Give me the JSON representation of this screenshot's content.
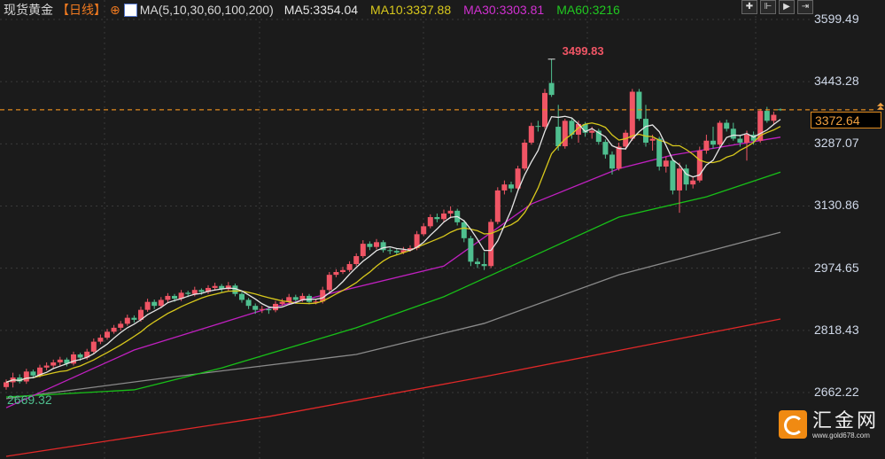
{
  "header": {
    "symbol": "现货黄金",
    "period": "【日线】",
    "ma_title": "MA(5,10,30,60,100,200)",
    "ma5": "MA5:3354.04",
    "ma10": "MA10:3337.88",
    "ma30": "MA30:3303.81",
    "ma60": "MA60:3216"
  },
  "toolbar": {
    "icons": [
      "crosshair-icon",
      "zoom-icon",
      "play-icon",
      "goto-end-icon"
    ]
  },
  "colors": {
    "up": "#f05565",
    "down": "#4fbf8f",
    "ma5": "#e6e6e6",
    "ma10": "#d8c81c",
    "ma30": "#c020c0",
    "ma60": "#18c018",
    "ma100": "#8a8a8a",
    "ma200": "#e02828",
    "last_price": "#f0a040"
  },
  "logo": {
    "name": "汇金网",
    "url": "www.gold678.com"
  },
  "chart_data": {
    "type": "candlestick",
    "ylim": [
      2495,
      3648
    ],
    "y_ticks": [
      "3599.49",
      "3443.28",
      "3287.07",
      "3130.86",
      "2974.65",
      "2818.43",
      "2662.22"
    ],
    "last_price": "3372.64",
    "high_label": "3499.83",
    "low_label": "2669.32",
    "grid": true,
    "ohlc": [
      [
        2676,
        2695,
        2669.32,
        2688
      ],
      [
        2688,
        2712,
        2675,
        2700
      ],
      [
        2700,
        2708,
        2685,
        2690
      ],
      [
        2690,
        2722,
        2684,
        2715
      ],
      [
        2715,
        2720,
        2698,
        2705
      ],
      [
        2705,
        2732,
        2700,
        2725
      ],
      [
        2725,
        2738,
        2718,
        2730
      ],
      [
        2730,
        2745,
        2724,
        2738
      ],
      [
        2738,
        2752,
        2730,
        2745
      ],
      [
        2745,
        2750,
        2728,
        2735
      ],
      [
        2735,
        2765,
        2730,
        2758
      ],
      [
        2758,
        2762,
        2742,
        2750
      ],
      [
        2750,
        2772,
        2745,
        2765
      ],
      [
        2765,
        2798,
        2760,
        2790
      ],
      [
        2790,
        2808,
        2784,
        2800
      ],
      [
        2800,
        2822,
        2795,
        2815
      ],
      [
        2815,
        2832,
        2810,
        2825
      ],
      [
        2825,
        2842,
        2818,
        2835
      ],
      [
        2835,
        2858,
        2830,
        2850
      ],
      [
        2850,
        2856,
        2838,
        2845
      ],
      [
        2845,
        2878,
        2840,
        2870
      ],
      [
        2870,
        2898,
        2865,
        2890
      ],
      [
        2890,
        2896,
        2872,
        2880
      ],
      [
        2880,
        2902,
        2874,
        2895
      ],
      [
        2895,
        2912,
        2888,
        2905
      ],
      [
        2905,
        2910,
        2890,
        2898
      ],
      [
        2898,
        2920,
        2892,
        2913
      ],
      [
        2913,
        2918,
        2902,
        2910
      ],
      [
        2910,
        2928,
        2904,
        2920
      ],
      [
        2920,
        2924,
        2908,
        2915
      ],
      [
        2915,
        2932,
        2910,
        2925
      ],
      [
        2925,
        2938,
        2918,
        2930
      ],
      [
        2930,
        2935,
        2915,
        2922
      ],
      [
        2922,
        2940,
        2916,
        2931
      ],
      [
        2931,
        2936,
        2904,
        2910
      ],
      [
        2910,
        2915,
        2888,
        2895
      ],
      [
        2895,
        2900,
        2872,
        2880
      ],
      [
        2880,
        2886,
        2860,
        2870
      ],
      [
        2870,
        2880,
        2862,
        2872
      ],
      [
        2872,
        2878,
        2860,
        2869
      ],
      [
        2869,
        2892,
        2864,
        2885
      ],
      [
        2885,
        2898,
        2880,
        2890
      ],
      [
        2890,
        2910,
        2885,
        2902
      ],
      [
        2902,
        2908,
        2888,
        2895
      ],
      [
        2895,
        2912,
        2890,
        2905
      ],
      [
        2905,
        2910,
        2884,
        2890
      ],
      [
        2890,
        2898,
        2884,
        2891
      ],
      [
        2891,
        2928,
        2886,
        2920
      ],
      [
        2920,
        2965,
        2915,
        2958
      ],
      [
        2958,
        2972,
        2952,
        2965
      ],
      [
        2965,
        2978,
        2960,
        2970
      ],
      [
        2970,
        2992,
        2965,
        2985
      ],
      [
        2985,
        3012,
        2980,
        3005
      ],
      [
        3005,
        3045,
        3000,
        3036
      ],
      [
        3036,
        3042,
        3020,
        3028
      ],
      [
        3028,
        3048,
        3022,
        3040
      ],
      [
        3040,
        3045,
        3014,
        3020
      ],
      [
        3020,
        3026,
        3010,
        3018
      ],
      [
        3018,
        3024,
        3008,
        3014
      ],
      [
        3014,
        3028,
        3010,
        3020
      ],
      [
        3020,
        3032,
        3016,
        3025
      ],
      [
        3025,
        3068,
        3020,
        3060
      ],
      [
        3060,
        3088,
        3055,
        3080
      ],
      [
        3080,
        3110,
        3075,
        3103
      ],
      [
        3103,
        3112,
        3090,
        3098
      ],
      [
        3098,
        3122,
        3092,
        3112
      ],
      [
        3112,
        3130,
        3100,
        3119
      ],
      [
        3119,
        3124,
        3082,
        3090
      ],
      [
        3090,
        3096,
        3040,
        3050
      ],
      [
        3050,
        3056,
        2980,
        2991
      ],
      [
        2991,
        3000,
        2975,
        2985
      ],
      [
        2985,
        3015,
        2970,
        2980
      ],
      [
        2980,
        3098,
        2975,
        3091
      ],
      [
        3091,
        3178,
        3085,
        3170
      ],
      [
        3170,
        3195,
        3160,
        3185
      ],
      [
        3185,
        3192,
        3165,
        3175
      ],
      [
        3175,
        3232,
        3170,
        3225
      ],
      [
        3225,
        3298,
        3220,
        3290
      ],
      [
        3290,
        3340,
        3285,
        3332
      ],
      [
        3332,
        3345,
        3318,
        3330
      ],
      [
        3330,
        3425,
        3325,
        3415
      ],
      [
        3440,
        3499.83,
        3405,
        3410
      ],
      [
        3330,
        3385,
        3270,
        3281
      ],
      [
        3281,
        3350,
        3275,
        3345
      ],
      [
        3345,
        3352,
        3300,
        3310
      ],
      [
        3310,
        3345,
        3290,
        3337
      ],
      [
        3337,
        3342,
        3305,
        3315
      ],
      [
        3315,
        3330,
        3300,
        3320
      ],
      [
        3320,
        3325,
        3285,
        3292
      ],
      [
        3292,
        3298,
        3250,
        3260
      ],
      [
        3260,
        3268,
        3210,
        3225
      ],
      [
        3225,
        3290,
        3220,
        3280
      ],
      [
        3280,
        3322,
        3272,
        3315
      ],
      [
        3300,
        3425,
        3295,
        3418
      ],
      [
        3418,
        3425,
        3345,
        3350
      ],
      [
        3350,
        3385,
        3280,
        3290
      ],
      [
        3295,
        3310,
        3270,
        3300
      ],
      [
        3300,
        3305,
        3220,
        3230
      ],
      [
        3230,
        3255,
        3215,
        3245
      ],
      [
        3245,
        3250,
        3160,
        3170
      ],
      [
        3170,
        3240,
        3114,
        3225
      ],
      [
        3225,
        3235,
        3170,
        3185
      ],
      [
        3185,
        3205,
        3175,
        3195
      ],
      [
        3195,
        3280,
        3190,
        3270
      ],
      [
        3270,
        3310,
        3262,
        3295
      ],
      [
        3295,
        3330,
        3275,
        3285
      ],
      [
        3285,
        3345,
        3280,
        3340
      ],
      [
        3340,
        3348,
        3318,
        3325
      ],
      [
        3325,
        3340,
        3295,
        3300
      ],
      [
        3300,
        3310,
        3280,
        3290
      ],
      [
        3290,
        3320,
        3245,
        3310
      ],
      [
        3310,
        3318,
        3285,
        3295
      ],
      [
        3295,
        3375,
        3290,
        3370
      ],
      [
        3370,
        3380,
        3340,
        3345
      ],
      [
        3345,
        3368,
        3335,
        3360
      ],
      [
        3374,
        3376,
        3370,
        3372.64
      ]
    ],
    "ma_series": {
      "ma30": [
        [
          0,
          2624
        ],
        [
          19,
          2769
        ],
        [
          39,
          2874
        ],
        [
          65,
          2980
        ],
        [
          78,
          3136
        ],
        [
          91,
          3225
        ],
        [
          99,
          3259
        ],
        [
          115,
          3303.81
        ]
      ],
      "ma60": [
        [
          0,
          2651
        ],
        [
          19,
          2669
        ],
        [
          32,
          2724
        ],
        [
          52,
          2825
        ],
        [
          65,
          2903
        ],
        [
          78,
          3003
        ],
        [
          91,
          3103
        ],
        [
          104,
          3154
        ],
        [
          115,
          3216
        ]
      ],
      "ma100": [
        [
          0,
          2647
        ],
        [
          25,
          2702
        ],
        [
          52,
          2758
        ],
        [
          71,
          2836
        ],
        [
          91,
          2958
        ],
        [
          115,
          3065
        ]
      ],
      "ma200": [
        [
          0,
          2502
        ],
        [
          39,
          2602
        ],
        [
          71,
          2702
        ],
        [
          115,
          2847
        ]
      ]
    }
  }
}
